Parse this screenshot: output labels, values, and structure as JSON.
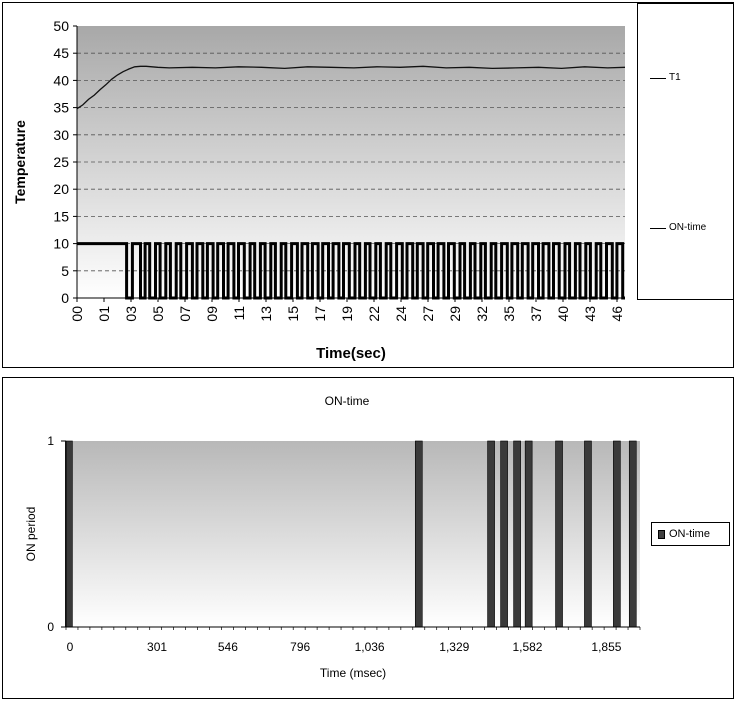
{
  "chart_data": [
    {
      "type": "line",
      "title": "",
      "xlabel": "Time(sec)",
      "ylabel": "Temperature",
      "ylim": [
        0,
        50
      ],
      "yticks": [
        "0",
        "5",
        "10",
        "15",
        "20",
        "25",
        "30",
        "35",
        "40",
        "45",
        "50"
      ],
      "xticks": [
        "00",
        "01",
        "03",
        "05",
        "07",
        "09",
        "11",
        "13",
        "15",
        "17",
        "19",
        "22",
        "24",
        "27",
        "29",
        "32",
        "35",
        "37",
        "40",
        "43",
        "46"
      ],
      "grid": "horizontal dashed",
      "legend_placement": "right",
      "series": [
        {
          "name": "T1",
          "x": [
            0,
            0.5,
            1,
            1.5,
            2,
            2.5,
            3,
            3.5,
            4,
            4.5,
            5,
            5.5,
            6,
            7,
            8,
            10,
            12,
            14,
            16,
            18,
            20,
            22,
            24,
            26,
            28,
            30,
            32,
            34,
            36,
            38,
            40,
            42,
            44,
            46,
            47.5
          ],
          "values": [
            34.8,
            35.5,
            36.5,
            37.3,
            38.3,
            39.2,
            40.2,
            41.0,
            41.6,
            42.1,
            42.5,
            42.6,
            42.6,
            42.4,
            42.3,
            42.4,
            42.3,
            42.5,
            42.4,
            42.2,
            42.5,
            42.4,
            42.3,
            42.5,
            42.4,
            42.6,
            42.3,
            42.4,
            42.2,
            42.3,
            42.4,
            42.2,
            42.5,
            42.3,
            42.4
          ]
        },
        {
          "name": "ON-time",
          "x": [
            0,
            4.2,
            4.3,
            4.8,
            5.5,
            5.9,
            6.3,
            6.8,
            7.2,
            7.7,
            8.1,
            8.6,
            9.0,
            9.5,
            10.0,
            10.4,
            10.9,
            11.3,
            11.8,
            12.2,
            12.7,
            13.1,
            13.6,
            14.0,
            14.5,
            15.0,
            15.4,
            15.9,
            16.3,
            16.8,
            17.2,
            17.7,
            18.1,
            18.6,
            19.1,
            19.5,
            20.0,
            20.4,
            20.9,
            21.3,
            21.8,
            22.2,
            22.7,
            23.1,
            23.6,
            24.1,
            24.5,
            25.0,
            25.4,
            25.9,
            26.3,
            26.8,
            27.2,
            27.7,
            28.2,
            28.6,
            29.1,
            29.5,
            30.0,
            30.4,
            30.9,
            31.3,
            31.8,
            32.2,
            32.7,
            33.2,
            33.6,
            34.1,
            34.5,
            35.0,
            35.4,
            35.9,
            36.3,
            36.8,
            37.3,
            37.7,
            38.2,
            38.6,
            39.1,
            39.5,
            40.0,
            40.4,
            40.9,
            41.3,
            41.8,
            42.3,
            42.7,
            43.2,
            43.6,
            44.1,
            44.5,
            45.0,
            45.4,
            45.9,
            46.4,
            46.8,
            47.3
          ],
          "values": [
            10,
            10,
            0,
            10,
            0,
            10,
            0,
            10,
            0,
            10,
            0,
            10,
            0,
            10,
            0,
            10,
            0,
            10,
            0,
            10,
            0,
            10,
            0,
            10,
            0,
            10,
            0,
            10,
            0,
            10,
            0,
            10,
            0,
            10,
            0,
            10,
            0,
            10,
            0,
            10,
            0,
            10,
            0,
            10,
            0,
            10,
            0,
            10,
            0,
            10,
            0,
            10,
            0,
            10,
            0,
            10,
            0,
            10,
            0,
            10,
            0,
            10,
            0,
            10,
            0,
            10,
            0,
            10,
            0,
            10,
            0,
            10,
            0,
            10,
            0,
            10,
            0,
            10,
            0,
            10,
            0,
            10,
            0,
            10,
            0,
            10,
            0,
            10,
            0,
            10,
            0,
            10,
            0,
            10,
            0,
            10,
            0
          ]
        }
      ]
    },
    {
      "type": "bar",
      "title": "ON-time",
      "xlabel": "Time (msec)",
      "ylabel": "ON period",
      "ylim": [
        0,
        1
      ],
      "yticks": [
        "0",
        "1"
      ],
      "xticks": [
        "0",
        "301",
        "546",
        "796",
        "1,036",
        "1,329",
        "1,582",
        "1,855"
      ],
      "legend_placement": "right",
      "series": [
        {
          "name": "ON-time",
          "x": [
            10,
            1220,
            1470,
            1515,
            1560,
            1600,
            1705,
            1805,
            1905,
            1960
          ],
          "values": [
            1,
            1,
            1,
            1,
            1,
            1,
            1,
            1,
            1,
            1
          ]
        }
      ]
    }
  ]
}
